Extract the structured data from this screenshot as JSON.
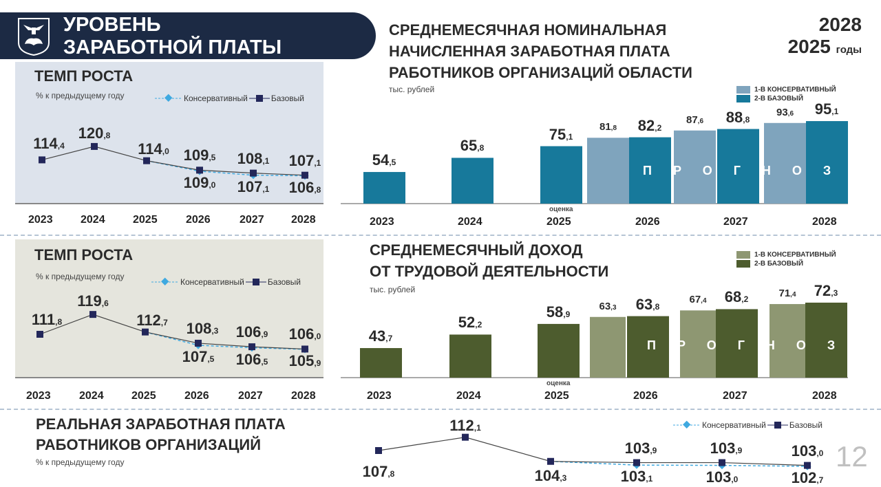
{
  "header": {
    "title_line1": "УРОВЕНЬ",
    "title_line2": "ЗАРАБОТНОЙ ПЛАТЫ",
    "period_line1": "2028",
    "period_line2": "2025",
    "period_suffix": "годы",
    "page_number": "12"
  },
  "legend": {
    "conservative": "Консервативный",
    "base": "Базовый",
    "bar_conservative": "1-В КОНСЕРВАТИВНЫЙ",
    "bar_base": "2-В БАЗОВЫЙ"
  },
  "colors": {
    "banner": "#1c2a44",
    "line_base": "#23275a",
    "line_cons": "#3fa9e0",
    "bar1_base": "#17799b",
    "bar1_cons": "#7fa4bd",
    "bar2_base": "#4d5c2e",
    "bar2_cons": "#8e9772"
  },
  "chart_data": [
    {
      "type": "line",
      "title": "ТЕМП РОСТА",
      "ylabel": "% к предыдущему году",
      "categories": [
        "2023",
        "2024",
        "2025",
        "2026",
        "2027",
        "2028"
      ],
      "series": [
        {
          "name": "Базовый",
          "values": [
            114.4,
            120.8,
            114.0,
            109.5,
            108.1,
            107.1
          ]
        },
        {
          "name": "Консервативный",
          "values": [
            null,
            null,
            114.0,
            109.0,
            107.1,
            106.8
          ]
        }
      ]
    },
    {
      "type": "bar",
      "title": "СРЕДНЕМЕСЯЧНАЯ НОМИНАЛЬНАЯ НАЧИСЛЕННАЯ ЗАРАБОТНАЯ ПЛАТА РАБОТНИКОВ ОРГАНИЗАЦИЙ ОБЛАСТИ",
      "title_lines": [
        "СРЕДНЕМЕСЯЧНАЯ НОМИНАЛЬНАЯ",
        "НАЧИСЛЕННАЯ ЗАРАБОТНАЯ ПЛАТА",
        "РАБОТНИКОВ ОРГАНИЗАЦИЙ ОБЛАСТИ"
      ],
      "ylabel": "тыс. рублей",
      "annotation": "оценка",
      "forecast_label": "ПРОГНОЗ",
      "categories": [
        "2023",
        "2024",
        "2025",
        "2026",
        "2027",
        "2028"
      ],
      "series": [
        {
          "name": "2-В БАЗОВЫЙ",
          "values": [
            54.5,
            65.8,
            75.1,
            82.2,
            88.8,
            95.1
          ]
        },
        {
          "name": "1-В КОНСЕРВАТИВНЫЙ",
          "values": [
            null,
            null,
            null,
            81.8,
            87.6,
            93.6
          ]
        }
      ]
    },
    {
      "type": "line",
      "title": "ТЕМП РОСТА",
      "ylabel": "% к предыдущему году",
      "categories": [
        "2023",
        "2024",
        "2025",
        "2026",
        "2027",
        "2028"
      ],
      "series": [
        {
          "name": "Базовый",
          "values": [
            111.8,
            119.6,
            112.7,
            108.3,
            106.9,
            106.0
          ]
        },
        {
          "name": "Консервативный",
          "values": [
            null,
            null,
            112.7,
            107.5,
            106.5,
            105.9
          ]
        }
      ]
    },
    {
      "type": "bar",
      "title": "СРЕДНЕМЕСЯЧНЫЙ ДОХОД ОТ ТРУДОВОЙ ДЕЯТЕЛЬНОСТИ",
      "title_lines": [
        "СРЕДНЕМЕСЯЧНЫЙ ДОХОД",
        "ОТ ТРУДОВОЙ ДЕЯТЕЛЬНОСТИ"
      ],
      "ylabel": "тыс. рублей",
      "annotation": "оценка",
      "forecast_label": "ПРОГНОЗ",
      "categories": [
        "2023",
        "2024",
        "2025",
        "2026",
        "2027",
        "2028"
      ],
      "series": [
        {
          "name": "2-В БАЗОВЫЙ",
          "values": [
            43.7,
            52.2,
            58.9,
            63.8,
            68.2,
            72.3
          ]
        },
        {
          "name": "1-В КОНСЕРВАТИВНЫЙ",
          "values": [
            null,
            null,
            null,
            63.3,
            67.4,
            71.4
          ]
        }
      ]
    },
    {
      "type": "line",
      "title": "РЕАЛЬНАЯ ЗАРАБОТНАЯ ПЛАТА РАБОТНИКОВ ОРГАНИЗАЦИЙ",
      "title_lines": [
        "РЕАЛЬНАЯ ЗАРАБОТНАЯ ПЛАТА",
        "РАБОТНИКОВ ОРГАНИЗАЦИЙ"
      ],
      "ylabel": "% к предыдущему году",
      "categories": [
        "2023",
        "2024",
        "2025",
        "2026",
        "2027",
        "2028"
      ],
      "series": [
        {
          "name": "Базовый",
          "values": [
            107.8,
            112.1,
            104.3,
            103.9,
            103.9,
            103.0
          ]
        },
        {
          "name": "Консервативный",
          "values": [
            null,
            null,
            104.3,
            103.1,
            103.0,
            102.7
          ]
        }
      ]
    }
  ]
}
